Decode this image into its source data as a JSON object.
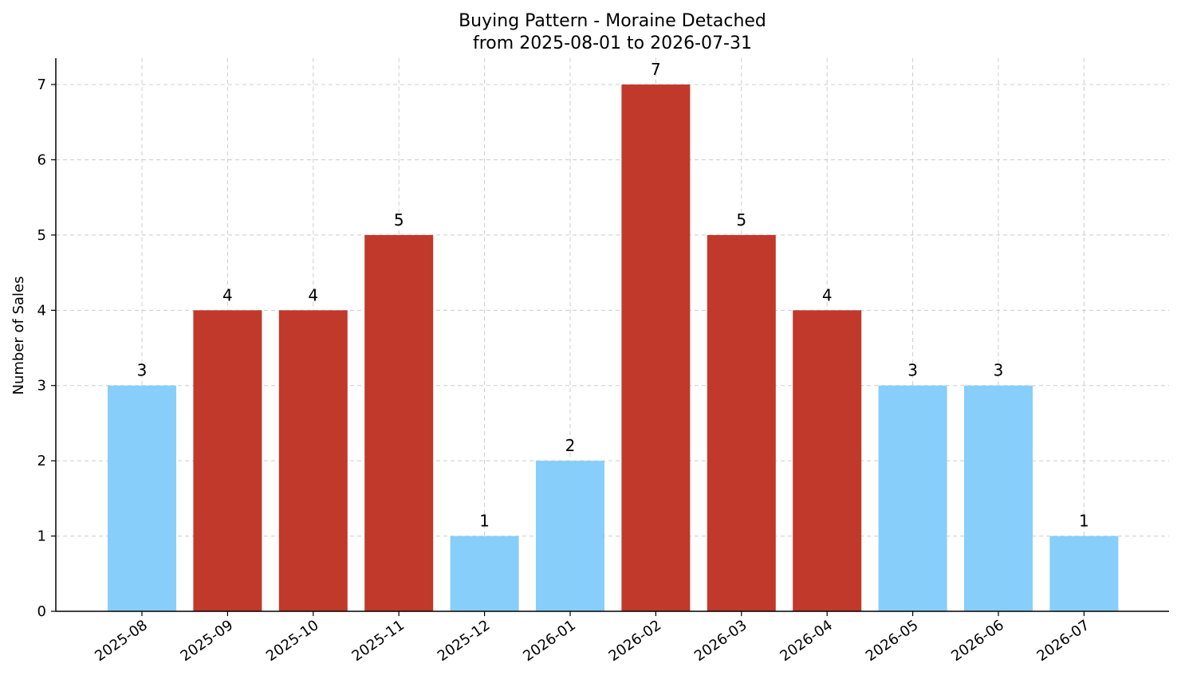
{
  "chart_data": {
    "type": "bar",
    "title": "Buying Pattern - Moraine Detached",
    "subtitle": "from 2025-08-01 to 2026-07-31",
    "xlabel": "",
    "ylabel": "Number of Sales",
    "categories": [
      "2025-08",
      "2025-09",
      "2025-10",
      "2025-11",
      "2025-12",
      "2026-01",
      "2026-02",
      "2026-03",
      "2026-04",
      "2026-05",
      "2026-06",
      "2026-07"
    ],
    "values": [
      3,
      4,
      4,
      5,
      1,
      2,
      7,
      5,
      4,
      3,
      3,
      1
    ],
    "ylim": [
      0,
      7.35
    ],
    "yticks": [
      0,
      1,
      2,
      3,
      4,
      5,
      6,
      7
    ],
    "grid": true,
    "colors": {
      "high": "#c0392b",
      "low": "#87cefa",
      "grid": "#cccccc",
      "axis": "#000000"
    },
    "high_threshold": 4
  }
}
